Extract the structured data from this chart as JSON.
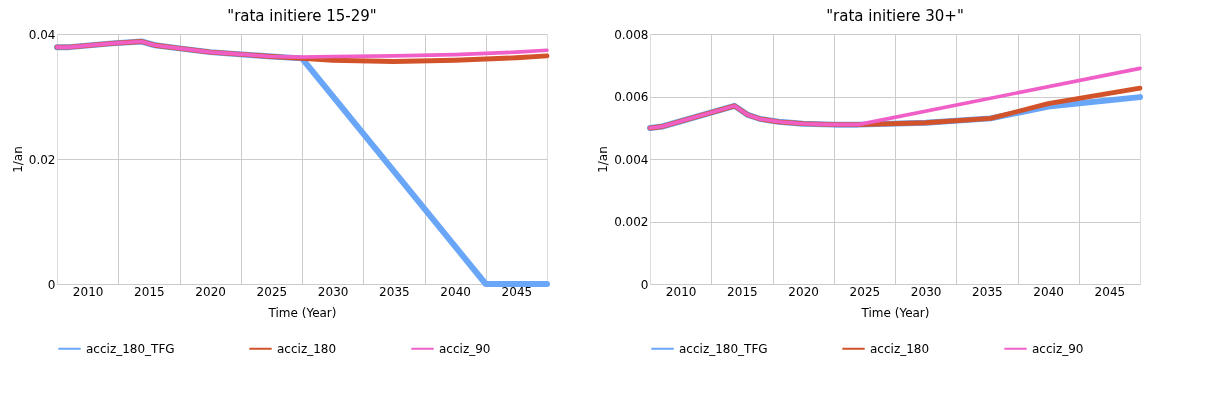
{
  "chart_data": [
    {
      "type": "line",
      "title": "\"rata initiere 15-29\"",
      "xlabel": "Time (Year)",
      "ylabel": "1/an",
      "xlim": [
        2007.5,
        2047.5
      ],
      "xticks": [
        2010,
        {
          "value": 2012.5,
          "label": null
        },
        2015,
        {
          "value": 2017.5,
          "label": null
        },
        2020,
        {
          "value": 2022.5,
          "label": null
        },
        2025,
        {
          "value": 2027.5,
          "label": null
        },
        2030,
        {
          "value": 2032.5,
          "label": null
        },
        2035,
        {
          "value": 2037.5,
          "label": null
        },
        2040,
        {
          "value": 2042.5,
          "label": null
        },
        2045
      ],
      "ylim": [
        0,
        0.04
      ],
      "yticks": [
        0,
        0.02,
        0.04
      ],
      "grid": true,
      "legend": "bottom",
      "series": [
        {
          "name": "acciz_180_TFG",
          "color": "#6aa6f8",
          "x": [
            2007.5,
            2008.5,
            2012,
            2014.4,
            2015.5,
            2017.5,
            2020,
            2025,
            2027.5,
            2042.5,
            2047.5
          ],
          "values": [
            0.0379,
            0.0379,
            0.0385,
            0.0388,
            0.0382,
            0.0377,
            0.0371,
            0.0364,
            0.0361,
            0,
            0
          ]
        },
        {
          "name": "acciz_180",
          "color": "#d2522a",
          "x": [
            2007.5,
            2008.5,
            2012,
            2014.4,
            2015.5,
            2017.5,
            2020,
            2025,
            2027.5,
            2030,
            2035,
            2040,
            2045,
            2047.5
          ],
          "values": [
            0.0379,
            0.0379,
            0.0385,
            0.0388,
            0.0382,
            0.0377,
            0.0371,
            0.0364,
            0.0361,
            0.0358,
            0.0356,
            0.0358,
            0.0362,
            0.0365
          ]
        },
        {
          "name": "acciz_90",
          "color": "#f05fc8",
          "x": [
            2007.5,
            2008.5,
            2012,
            2014.4,
            2015.5,
            2017.5,
            2020,
            2025,
            2027.5,
            2030,
            2035,
            2040,
            2045,
            2047.5
          ],
          "values": [
            0.0379,
            0.0379,
            0.0385,
            0.0388,
            0.0382,
            0.0377,
            0.0371,
            0.0364,
            0.0363,
            0.0364,
            0.0365,
            0.0367,
            0.0371,
            0.0374
          ]
        }
      ]
    },
    {
      "type": "line",
      "title": "\"rata initiere 30+\"",
      "xlabel": "Time (Year)",
      "ylabel": "1/an",
      "xlim": [
        2007.5,
        2047.5
      ],
      "xticks": [
        2010,
        {
          "value": 2012.5,
          "label": null
        },
        2015,
        {
          "value": 2017.5,
          "label": null
        },
        2020,
        {
          "value": 2022.5,
          "label": null
        },
        2025,
        {
          "value": 2027.5,
          "label": null
        },
        2030,
        {
          "value": 2032.5,
          "label": null
        },
        2035,
        {
          "value": 2037.5,
          "label": null
        },
        2040,
        {
          "value": 2042.5,
          "label": null
        },
        2045
      ],
      "ylim": [
        0,
        0.008
      ],
      "yticks": [
        0,
        0.002,
        0.004,
        0.006,
        0.008
      ],
      "grid": true,
      "legend": "bottom",
      "series": [
        {
          "name": "acciz_180_TFG",
          "color": "#6aa6f8",
          "x": [
            2007.5,
            2008.5,
            2014.4,
            2015.5,
            2016.5,
            2018,
            2020,
            2022.5,
            2024.5,
            2030,
            2035.3,
            2040,
            2047.5
          ],
          "values": [
            0.00499,
            0.00504,
            0.0057,
            0.00541,
            0.00528,
            0.00519,
            0.00513,
            0.0051,
            0.0051,
            0.00516,
            0.0053,
            0.00568,
            0.00598
          ]
        },
        {
          "name": "acciz_180",
          "color": "#d2522a",
          "x": [
            2007.5,
            2008.5,
            2014.4,
            2015.5,
            2016.5,
            2018,
            2020,
            2022.5,
            2024.5,
            2030,
            2035.3,
            2040,
            2047.5
          ],
          "values": [
            0.00499,
            0.00504,
            0.0057,
            0.00541,
            0.00528,
            0.00519,
            0.00513,
            0.0051,
            0.0051,
            0.00516,
            0.0053,
            0.00577,
            0.00627
          ]
        },
        {
          "name": "acciz_90",
          "color": "#f05fc8",
          "x": [
            2007.5,
            2008.5,
            2014.4,
            2015.5,
            2016.5,
            2018,
            2020,
            2022.5,
            2024.5,
            2047.5
          ],
          "values": [
            0.00499,
            0.00504,
            0.0057,
            0.00541,
            0.00528,
            0.00519,
            0.00513,
            0.0051,
            0.0051,
            0.0069
          ]
        }
      ]
    }
  ]
}
